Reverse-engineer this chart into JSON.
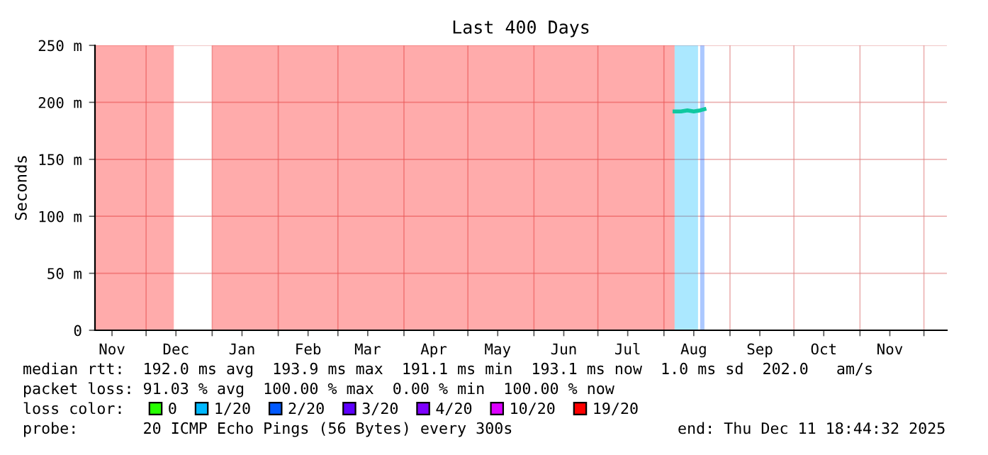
{
  "chart_data": {
    "type": "area",
    "title": "Last 400 Days",
    "ylabel": "Seconds",
    "xlim": [
      "2024-11-07",
      "2025-12-11T18:44"
    ],
    "ylim": [
      0,
      250
    ],
    "yticks": [
      0,
      {
        "value": 50,
        "label": "50 m"
      },
      {
        "value": 100,
        "label": "100 m"
      },
      {
        "value": 150,
        "label": "150 m"
      },
      {
        "value": 200,
        "label": "200 m"
      },
      {
        "value": 250,
        "label": "250 m"
      }
    ],
    "xticks": [
      {
        "value": "2024-11-15",
        "label": "Nov"
      },
      {
        "value": "2024-12-01",
        "label": null
      },
      {
        "value": "2024-12-15",
        "label": "Dec"
      },
      {
        "value": "2025-01-01",
        "label": null
      },
      {
        "value": "2025-01-15",
        "label": "Jan"
      },
      {
        "value": "2025-02-01",
        "label": null
      },
      {
        "value": "2025-02-15",
        "label": "Feb"
      },
      {
        "value": "2025-03-01",
        "label": null
      },
      {
        "value": "2025-03-15",
        "label": "Mar"
      },
      {
        "value": "2025-04-01",
        "label": null
      },
      {
        "value": "2025-04-15",
        "label": "Apr"
      },
      {
        "value": "2025-05-01",
        "label": null
      },
      {
        "value": "2025-05-15",
        "label": "May"
      },
      {
        "value": "2025-06-01",
        "label": null
      },
      {
        "value": "2025-06-15",
        "label": "Jun"
      },
      {
        "value": "2025-07-01",
        "label": null
      },
      {
        "value": "2025-07-15",
        "label": "Jul"
      },
      {
        "value": "2025-08-01",
        "label": null
      },
      {
        "value": "2025-08-15",
        "label": "Aug"
      },
      {
        "value": "2025-09-01",
        "label": null
      },
      {
        "value": "2025-09-15",
        "label": "Sep"
      },
      {
        "value": "2025-10-01",
        "label": null
      },
      {
        "value": "2025-10-15",
        "label": "Oct"
      },
      {
        "value": "2025-11-01",
        "label": null
      },
      {
        "value": "2025-11-15",
        "label": "Nov"
      },
      {
        "value": "2025-12-01",
        "label": null
      }
    ],
    "grid": true,
    "legend": "bottom",
    "legend_title": "loss color:",
    "series": [
      {
        "name": "0",
        "color": "#26ff00"
      },
      {
        "name": "1/20",
        "color": "#00b8ff",
        "x": [
          "2025-08-06",
          "2025-08-17"
        ],
        "values": [
          250,
          250
        ]
      },
      {
        "name": "2/20",
        "color": "#0059ff",
        "x": [
          "2025-08-18",
          "2025-08-20"
        ],
        "values": [
          250,
          250
        ]
      },
      {
        "name": "3/20",
        "color": "#5e00ff"
      },
      {
        "name": "4/20",
        "color": "#7e00ff"
      },
      {
        "name": "10/20",
        "color": "#dd00ff"
      },
      {
        "name": "19/20",
        "color": "#ff0000",
        "x": [
          "2024-11-07",
          "2024-12-14",
          "2024-12-15",
          "2025-01-01",
          "2025-08-06"
        ],
        "values": [
          250,
          250,
          null,
          250,
          250
        ]
      },
      {
        "type": "line",
        "color": "#10c8a0",
        "x": [
          "2025-08-06",
          "2025-08-09",
          "2025-08-12",
          "2025-08-15",
          "2025-08-18",
          "2025-08-20"
        ],
        "values": [
          192,
          192,
          193,
          192,
          193,
          194
        ]
      }
    ],
    "annotations": [
      "median rtt:  192.0 ms avg  193.9 ms max  191.1 ms min  193.1 ms now  1.0 ms sd  202.0   am/s",
      "packet loss: 91.03 % avg  100.00 % max  0.00 % min  100.00 % now",
      "probe:       20 ICMP Echo Pings (56 Bytes) every 300s",
      "end: Thu Dec 11 18:44:32 2025"
    ]
  }
}
